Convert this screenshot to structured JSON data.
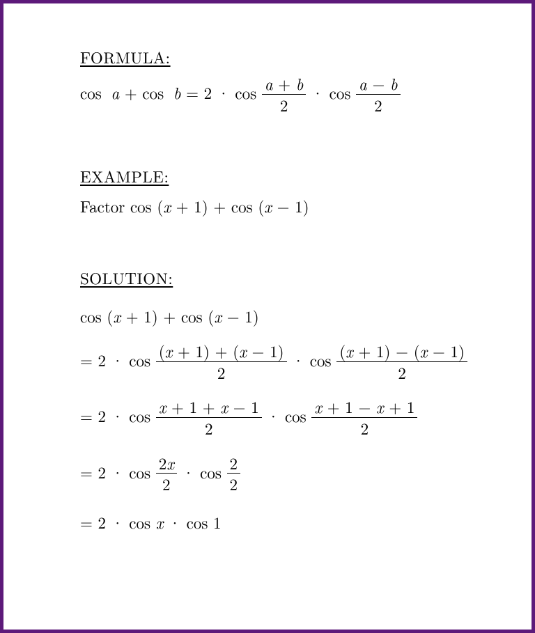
{
  "border_color": "#5d1a7a",
  "background_color": "#ffffff",
  "text_color": "#000000",
  "font_family": "Computer Modern / Times serif",
  "font_size_pt": 18,
  "sections": {
    "formula": {
      "heading": "FORMULA:",
      "lhs_a": "cos ",
      "lhs_var_a": "a",
      "lhs_plus": " + cos ",
      "lhs_var_b": "b",
      "equals": " = 2 · cos ",
      "frac1_num_a": "a",
      "frac1_num_plus": " + ",
      "frac1_num_b": "b",
      "frac1_den": "2",
      "mid_dot": " · cos ",
      "frac2_num_a": "a",
      "frac2_num_minus": " − ",
      "frac2_num_b": "b",
      "frac2_den": "2"
    },
    "example": {
      "heading": "EXAMPLE:",
      "prefix": "Factor  cos  (",
      "x1": "x",
      "mid1": " + 1) + cos  (",
      "x2": "x",
      "suffix": " − 1)"
    },
    "solution": {
      "heading": "SOLUTION:",
      "line1_a": "cos  (",
      "line1_x1": "x",
      "line1_b": " + 1) + cos  (",
      "line1_x2": "x",
      "line1_c": " − 1)",
      "line2_pre": "= 2 · cos ",
      "line2_f1n_a": "(",
      "line2_f1n_x1": "x",
      "line2_f1n_b": " + 1) + (",
      "line2_f1n_x2": "x",
      "line2_f1n_c": " − 1)",
      "line2_f1d": "2",
      "line2_mid": " · cos ",
      "line2_f2n_a": "(",
      "line2_f2n_x1": "x",
      "line2_f2n_b": " + 1) − (",
      "line2_f2n_x2": "x",
      "line2_f2n_c": " − 1)",
      "line2_f2d": "2",
      "line3_pre": "= 2 · cos ",
      "line3_f1n_x1": "x",
      "line3_f1n_a": " + 1 + ",
      "line3_f1n_x2": "x",
      "line3_f1n_b": " − 1",
      "line3_f1d": "2",
      "line3_mid": " · cos ",
      "line3_f2n_x1": "x",
      "line3_f2n_a": " + 1 − ",
      "line3_f2n_x2": "x",
      "line3_f2n_b": " + 1",
      "line3_f2d": "2",
      "line4_pre": "= 2 · cos ",
      "line4_f1n_a": "2",
      "line4_f1n_x": "x",
      "line4_f1d": "2",
      "line4_mid": " · cos ",
      "line4_f2n": "2",
      "line4_f2d": "2",
      "line5_a": "= 2 · cos ",
      "line5_x": "x",
      "line5_b": " · cos 1"
    }
  }
}
